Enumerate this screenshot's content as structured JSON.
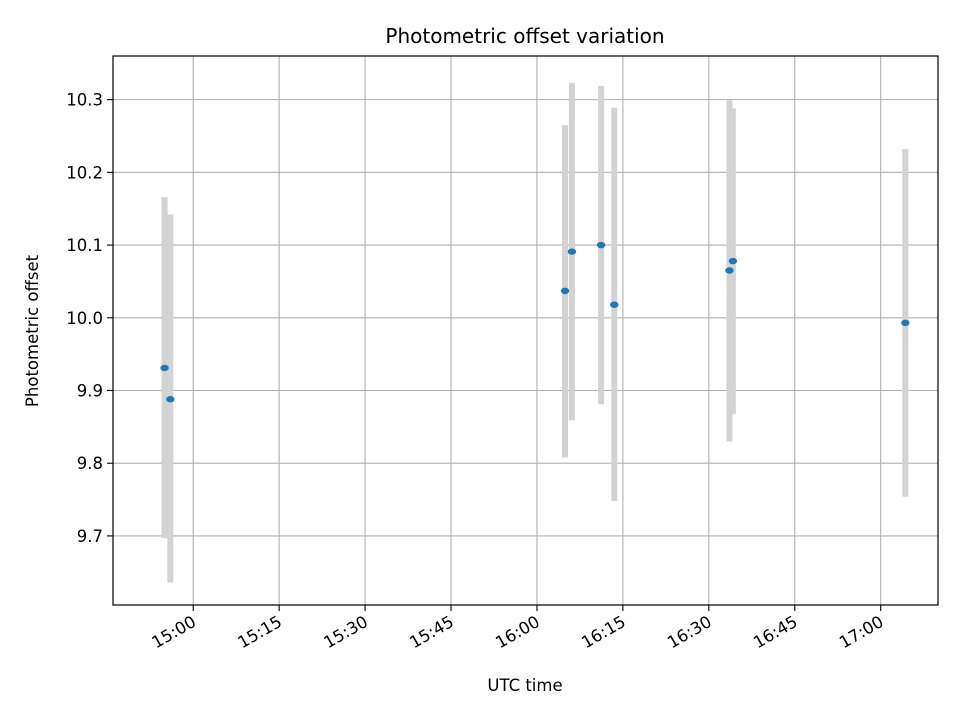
{
  "chart_data": {
    "type": "scatter",
    "title": "Photometric offset variation",
    "xlabel": "UTC time",
    "ylabel": "Photometric offset",
    "x_tick_labels": [
      "15:00",
      "15:15",
      "15:30",
      "15:45",
      "16:00",
      "16:15",
      "16:30",
      "16:45",
      "17:00"
    ],
    "x_tick_minutes": [
      900,
      915,
      930,
      945,
      960,
      975,
      990,
      1005,
      1020
    ],
    "xlim_minutes": [
      886,
      1030
    ],
    "y_ticks": [
      9.7,
      9.8,
      9.9,
      10.0,
      10.1,
      10.2,
      10.3
    ],
    "y_tick_labels": [
      "9.7",
      "9.8",
      "9.9",
      "10.0",
      "10.1",
      "10.2",
      "10.3"
    ],
    "ylim": [
      9.605,
      10.36
    ],
    "grid": true,
    "point_color": "#1f77b4",
    "errorbar_color": "#d3d3d3",
    "points": [
      {
        "time": "14:55",
        "minute": 895.0,
        "y": 9.931,
        "lo": 9.697,
        "hi": 10.166
      },
      {
        "time": "14:56",
        "minute": 896.0,
        "y": 9.888,
        "lo": 9.636,
        "hi": 10.142
      },
      {
        "time": "16:05",
        "minute": 964.9,
        "y": 10.037,
        "lo": 9.808,
        "hi": 10.265
      },
      {
        "time": "16:06",
        "minute": 966.1,
        "y": 10.091,
        "lo": 9.859,
        "hi": 10.323
      },
      {
        "time": "16:11",
        "minute": 971.2,
        "y": 10.1,
        "lo": 9.881,
        "hi": 10.319
      },
      {
        "time": "16:13",
        "minute": 973.5,
        "y": 10.018,
        "lo": 9.748,
        "hi": 10.289
      },
      {
        "time": "16:34",
        "minute": 993.6,
        "y": 10.065,
        "lo": 9.83,
        "hi": 10.299
      },
      {
        "time": "16:34",
        "minute": 994.2,
        "y": 10.078,
        "lo": 9.868,
        "hi": 10.288
      },
      {
        "time": "17:04",
        "minute": 1024.3,
        "y": 9.993,
        "lo": 9.754,
        "hi": 10.232
      }
    ]
  }
}
